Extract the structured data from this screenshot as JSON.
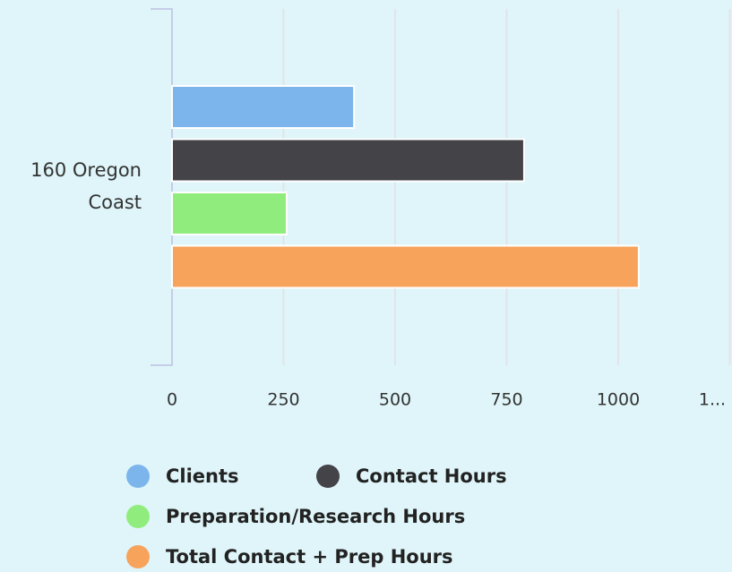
{
  "chart_data": {
    "type": "bar",
    "orientation": "horizontal",
    "categories": [
      "160 Oregon Coast"
    ],
    "series": [
      {
        "name": "Clients",
        "color": "#7cb5ec",
        "values": [
          408
        ]
      },
      {
        "name": "Contact Hours",
        "color": "#434348",
        "values": [
          789
        ]
      },
      {
        "name": "Preparation/Research Hours",
        "color": "#90ed7d",
        "values": [
          257
        ]
      },
      {
        "name": "Total Contact + Prep Hours",
        "color": "#f7a35c",
        "values": [
          1046
        ]
      }
    ],
    "xlim": [
      0,
      1250
    ],
    "xticks": [
      0,
      250,
      500,
      750,
      1000,
      {
        "value": 1250,
        "label": "1..."
      }
    ],
    "grid": true
  }
}
